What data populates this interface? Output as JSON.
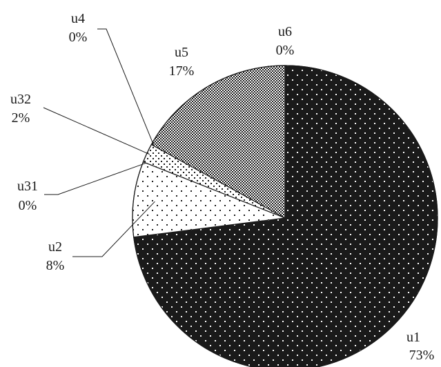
{
  "chart_data": {
    "type": "pie",
    "title": "",
    "start_angle_deg": 0,
    "direction": "clockwise",
    "slices": [
      {
        "name": "u1",
        "value": 73,
        "label": "73%",
        "pattern": "dark-dots"
      },
      {
        "name": "u2",
        "value": 8,
        "label": "8%",
        "pattern": "sparse-dots"
      },
      {
        "name": "u31",
        "value": 0,
        "label": "0%",
        "pattern": "none"
      },
      {
        "name": "u32",
        "value": 2,
        "label": "2%",
        "pattern": "medium-dots"
      },
      {
        "name": "u4",
        "value": 0,
        "label": "0%",
        "pattern": "none"
      },
      {
        "name": "u5",
        "value": 17,
        "label": "17%",
        "pattern": "checker"
      },
      {
        "name": "u6",
        "value": 0,
        "label": "0%",
        "pattern": "none"
      }
    ],
    "colors": {
      "ink": "#1a1a1a",
      "paper": "#ffffff"
    }
  }
}
